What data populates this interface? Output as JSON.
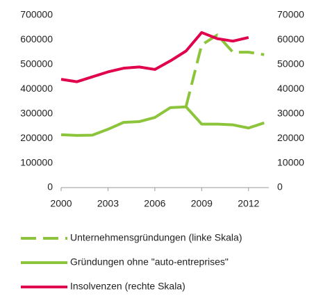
{
  "chart_data": {
    "type": "line",
    "x": [
      2000,
      2001,
      2002,
      2003,
      2004,
      2005,
      2006,
      2007,
      2008,
      2009,
      2010,
      2011,
      2012,
      2013
    ],
    "xlim": [
      2000,
      2013.3
    ],
    "xticks": [
      2000,
      2003,
      2006,
      2009,
      2012
    ],
    "ylim": [
      0,
      700000
    ],
    "yticks": [
      0,
      100000,
      200000,
      300000,
      400000,
      500000,
      600000,
      700000
    ],
    "y2lim": [
      0,
      70000
    ],
    "y2ticks": [
      0,
      10000,
      20000,
      30000,
      40000,
      50000,
      60000,
      70000
    ],
    "grid": false,
    "series": [
      {
        "name": "Unternehmensgründungen (linke Skala)",
        "color": "#8cc43c",
        "linestyle": "dashed",
        "values": [
          null,
          null,
          null,
          null,
          null,
          null,
          null,
          null,
          330000,
          580000,
          620000,
          550000,
          550000,
          540000
        ]
      },
      {
        "name": "Gründungen ohne \"auto-entreprises\"",
        "color": "#8cc43c",
        "linestyle": "solid",
        "values": [
          215000,
          212000,
          213000,
          237000,
          265000,
          268000,
          285000,
          325000,
          328000,
          258000,
          258000,
          255000,
          242000,
          263000
        ]
      },
      {
        "name": "Insolvenzen (rechte Skala)",
        "color": "#e0004d",
        "linestyle": "solid",
        "axis": "y2",
        "values": [
          44000,
          43000,
          45000,
          47000,
          48500,
          49000,
          48000,
          51500,
          55500,
          63000,
          60500,
          59500,
          61000,
          null
        ]
      }
    ]
  }
}
